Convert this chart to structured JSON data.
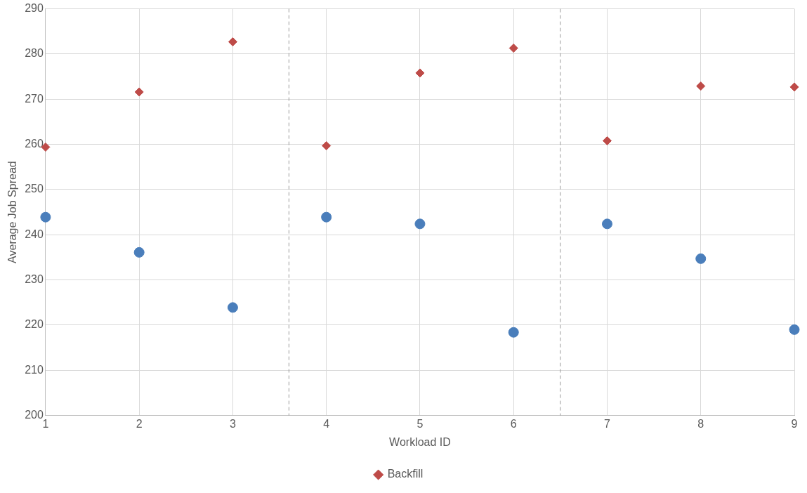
{
  "chart_data": {
    "type": "scatter",
    "xlabel": "Workload ID",
    "ylabel": "Average Job Spread",
    "x": [
      1,
      2,
      3,
      4,
      5,
      6,
      7,
      8,
      9
    ],
    "series": [
      {
        "color": "#4a7ebb",
        "marker": "circle",
        "values": [
          243.9,
          236.1,
          223.9,
          243.9,
          242.4,
          218.4,
          242.4,
          234.7,
          219.0
        ]
      },
      {
        "name": "Backfill",
        "color": "#be4b48",
        "marker": "diamond",
        "values": [
          259.4,
          271.6,
          282.7,
          259.7,
          275.8,
          281.3,
          260.8,
          272.9,
          272.7
        ]
      }
    ],
    "xlim": [
      1,
      9
    ],
    "xticks": [
      1,
      2,
      3,
      4,
      5,
      6,
      7,
      8,
      9
    ],
    "ylim": [
      200,
      290
    ],
    "yticks": [
      200,
      210,
      220,
      230,
      240,
      250,
      260,
      270,
      280,
      290
    ],
    "ref_lines": [
      {
        "axis": "x",
        "value": 3.6,
        "line_style": "dashed",
        "color": "#999999"
      },
      {
        "axis": "x",
        "value": 6.5,
        "line_style": "dashed",
        "color": "#999999"
      }
    ],
    "grid": true,
    "legend": "bottom"
  }
}
